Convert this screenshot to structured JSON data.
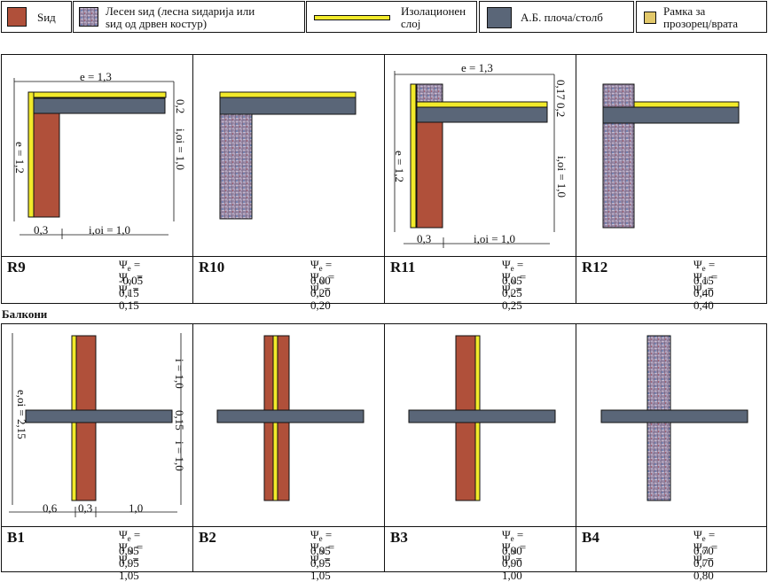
{
  "legend": {
    "wall": "Ѕид",
    "wood_wall": "Лесен ѕид (лесна ѕидарија или ѕид од дрвен костур)",
    "wood_wall_l1": "Лесен ѕид (лесна ѕидарија или",
    "wood_wall_l2": "ѕид од дрвен костур)",
    "insulation_l1": "Изолационен",
    "insulation_l2": "слој",
    "slab": "А.Б. плоча/столб",
    "frame_l1": "Рамка за",
    "frame_l2": "прозорец/врата"
  },
  "colors": {
    "wall": "#b0503a",
    "insulation": "#f2ea2a",
    "slab": "#5a6678",
    "wood": "#9a8aa8",
    "frame": "#e2c86a"
  },
  "section_balconies": "Балкони",
  "row1": [
    {
      "id": "R9",
      "dims": {
        "e_top": "e = 1,3",
        "e_left": "e = 1,2",
        "thick": "0,2",
        "ioi": "i,oi = 1,0",
        "ioi_bottom": "i,oi = 1,0",
        "w": "0,3"
      },
      "psi": [
        [
          "e",
          "= -0,05"
        ],
        [
          "oi",
          "=  0,15"
        ],
        [
          "i",
          "=  0,15"
        ]
      ]
    },
    {
      "id": "R10",
      "psi": [
        [
          "e",
          "=  0,00"
        ],
        [
          "oi",
          "=  0,20"
        ],
        [
          "i",
          "=  0,20"
        ]
      ]
    },
    {
      "id": "R11",
      "dims": {
        "e_top": "e = 1,3",
        "e_left": "e = 1,2",
        "t1": "0,17",
        "t2": "0,2",
        "ioi": "i,oi = 1,0",
        "ioi_bottom": "i,oi = 1,0",
        "w": "0,3"
      },
      "psi": [
        [
          "e",
          "=  0,05"
        ],
        [
          "oi",
          "=  0,25"
        ],
        [
          "i",
          "=  0,25"
        ]
      ]
    },
    {
      "id": "R12",
      "psi": [
        [
          "e",
          "=  0,15"
        ],
        [
          "oi",
          "=  0,40"
        ],
        [
          "i",
          "=  0,40"
        ]
      ]
    }
  ],
  "row2": [
    {
      "id": "B1",
      "dims": {
        "i_top": "i = 1,0",
        "t": "0,15",
        "i_bot": "i = 1,0",
        "eoi": "e,oi = 2,15",
        "a": "0,6",
        "b": "0,3",
        "c": "1,0"
      },
      "psi": [
        [
          "e",
          "=  0,95"
        ],
        [
          "oi",
          "=  0,95"
        ],
        [
          "i",
          "=  1,05"
        ]
      ]
    },
    {
      "id": "B2",
      "psi": [
        [
          "e",
          "=  0,95"
        ],
        [
          "oi",
          "=  0,95"
        ],
        [
          "i",
          "=  1,05"
        ]
      ]
    },
    {
      "id": "B3",
      "psi": [
        [
          "e",
          "=  0,90"
        ],
        [
          "oi",
          "=  0,90"
        ],
        [
          "i",
          "=  1,00"
        ]
      ]
    },
    {
      "id": "B4",
      "psi": [
        [
          "e",
          "=  0,70"
        ],
        [
          "oi",
          "=  0,70"
        ],
        [
          "i",
          "=  0,80"
        ]
      ]
    }
  ]
}
